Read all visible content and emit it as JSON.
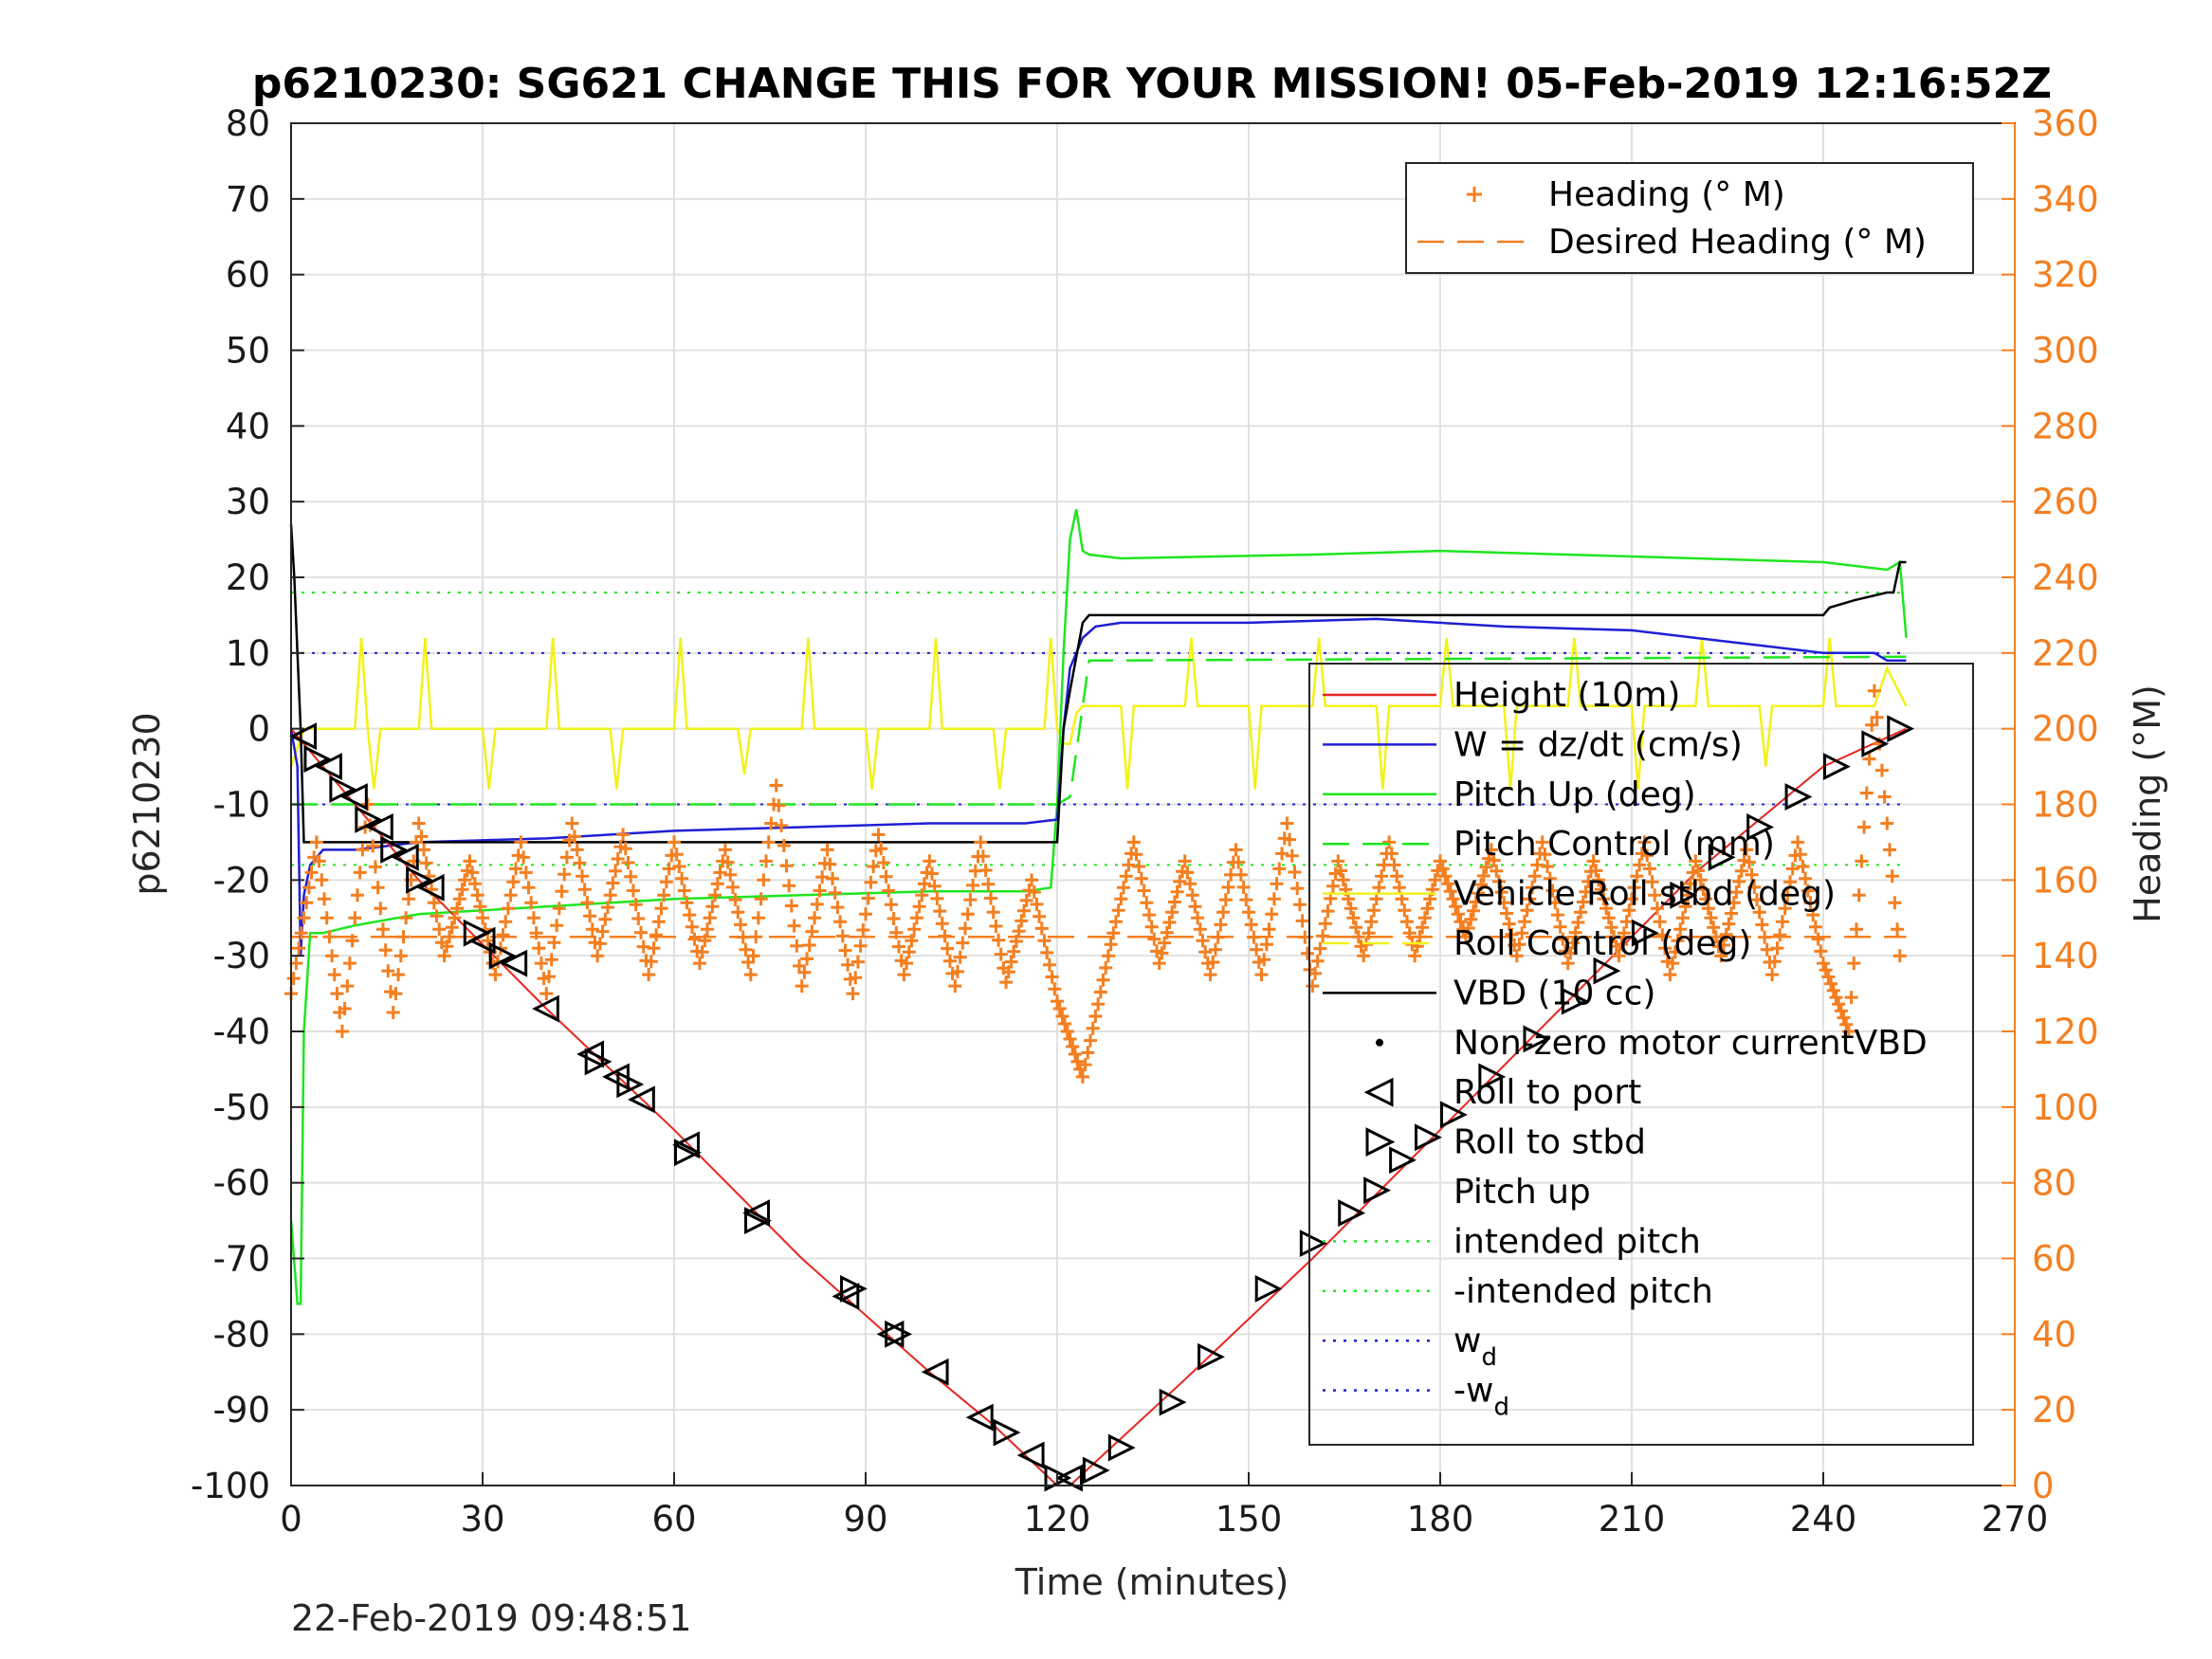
{
  "chart_data": {
    "type": "line",
    "title": "p6210230: SG621 CHANGE THIS FOR YOUR MISSION! 05-Feb-2019 12:16:52Z",
    "xlabel": "Time (minutes)",
    "ylabel": "p6210230",
    "y2label": "Heading (°M)",
    "footer": "22-Feb-2019 09:48:51",
    "xlim": [
      0,
      270
    ],
    "ylim": [
      -100,
      80
    ],
    "y2lim": [
      0,
      360
    ],
    "xticks": [
      "0",
      "30",
      "60",
      "90",
      "120",
      "150",
      "180",
      "210",
      "240",
      "270"
    ],
    "yticks": [
      "80",
      "70",
      "60",
      "50",
      "40",
      "30",
      "20",
      "10",
      "0",
      "-10",
      "-20",
      "-30",
      "-40",
      "-50",
      "-60",
      "-70",
      "-80",
      "-90",
      "-100"
    ],
    "y2ticks": [
      "360",
      "340",
      "320",
      "300",
      "280",
      "260",
      "240",
      "220",
      "200",
      "180",
      "160",
      "140",
      "120",
      "100",
      "80",
      "60",
      "40",
      "20",
      "0"
    ],
    "grid": true,
    "colors": {
      "height": "#e6261f",
      "w": "#1f1fd6",
      "pitch": "#1fe61f",
      "roll": "#f2f21a",
      "vbd": "#000000",
      "heading": "#f47f20"
    },
    "legend_top_right": [
      {
        "label": "Heading (° M)",
        "style": "plus",
        "color": "#f47f20"
      },
      {
        "label": "Desired Heading (° M)",
        "style": "dashed",
        "color": "#f47f20"
      }
    ],
    "legend_main": [
      {
        "label": "Height (10m)",
        "style": "solid",
        "color": "#e6261f"
      },
      {
        "label": "W = dz/dt (cm/s)",
        "style": "solid",
        "color": "#1f1fd6"
      },
      {
        "label": "Pitch Up (deg)",
        "style": "solid",
        "color": "#1fe61f"
      },
      {
        "label": "Pitch Control (mm)",
        "style": "dashed",
        "color": "#1fe61f"
      },
      {
        "label": "Vehicle Roll stbd (deg)",
        "style": "solid",
        "color": "#f2f21a"
      },
      {
        "label": "Roll Control (deg)",
        "style": "dashed",
        "color": "#f2f21a"
      },
      {
        "label": "VBD (10 cc)",
        "style": "solid",
        "color": "#000000"
      },
      {
        "label": "Non-zero motor currentVBD",
        "style": "dot",
        "color": "#000000"
      },
      {
        "label": "Roll to port",
        "style": "tri-left",
        "color": "#000000"
      },
      {
        "label": "Roll to stbd",
        "style": "tri-right",
        "color": "#000000"
      },
      {
        "label": "Pitch up",
        "style": "none",
        "color": "#000000"
      },
      {
        "label": "intended pitch",
        "style": "dotted",
        "color": "#1fe61f"
      },
      {
        "label": "-intended pitch",
        "style": "dotted",
        "color": "#1fe61f"
      },
      {
        "label": "w",
        "sub": "d",
        "style": "dotted",
        "color": "#1f1fd6"
      },
      {
        "label": "-w",
        "sub": "d",
        "style": "dotted",
        "color": "#1f1fd6"
      }
    ],
    "reference_lines": [
      {
        "name": "intended pitch",
        "y": 18,
        "color": "#1fe61f"
      },
      {
        "name": "-intended pitch",
        "y": -18,
        "color": "#1fe61f"
      },
      {
        "name": "w_d",
        "y": 10,
        "color": "#1f1fd6"
      },
      {
        "name": "-w_d",
        "y": -10,
        "color": "#1f1fd6"
      }
    ],
    "series": [
      {
        "key": "height",
        "x": [
          0,
          20,
          40,
          60,
          80,
          100,
          110,
          120,
          122,
          140,
          160,
          180,
          200,
          220,
          240,
          253
        ],
        "y": [
          0,
          -20,
          -37,
          -53,
          -70,
          -85,
          -92,
          -100,
          -100,
          -86,
          -70,
          -53,
          -36,
          -19,
          -5,
          0
        ]
      },
      {
        "key": "w",
        "x": [
          0,
          1,
          1.5,
          2,
          3,
          5,
          10,
          20,
          40,
          60,
          80,
          100,
          115,
          120,
          121,
          122,
          124,
          126,
          130,
          150,
          170,
          190,
          210,
          220,
          230,
          240,
          248,
          250,
          253
        ],
        "y": [
          0,
          -5,
          -30,
          -22,
          -18,
          -16,
          -16,
          -15,
          -14.5,
          -13.5,
          -13,
          -12.5,
          -12.5,
          -12,
          0,
          8,
          12,
          13.5,
          14,
          14,
          14.5,
          13.5,
          13,
          12,
          11,
          10,
          10,
          9,
          9
        ]
      },
      {
        "key": "pitch",
        "x": [
          0,
          1,
          1.5,
          2,
          3,
          5,
          10,
          20,
          40,
          60,
          80,
          100,
          115,
          119,
          120,
          121,
          122,
          123,
          124,
          125,
          130,
          160,
          180,
          200,
          220,
          240,
          250,
          252,
          253
        ],
        "y": [
          -65,
          -76,
          -76,
          -40,
          -27,
          -27,
          -26,
          -24.5,
          -23.5,
          -22.5,
          -22,
          -21.5,
          -21.5,
          -21,
          -10,
          10,
          25,
          29,
          23.5,
          23,
          22.5,
          23,
          23.5,
          23,
          22.5,
          22,
          21,
          22,
          12
        ]
      },
      {
        "key": "pitch_control",
        "x": [
          0,
          5,
          120,
          122,
          125,
          253
        ],
        "y": [
          -10,
          -10,
          -10,
          -9,
          9,
          9.5
        ],
        "style": "dashed"
      },
      {
        "key": "roll",
        "x": [
          0,
          2,
          3,
          10,
          11,
          12,
          13,
          14,
          20,
          21,
          22,
          30,
          31,
          32,
          40,
          41,
          42,
          50,
          51,
          52,
          60,
          61,
          62,
          70,
          71,
          72,
          80,
          81,
          82,
          90,
          91,
          92,
          100,
          101,
          102,
          110,
          111,
          112,
          118,
          119,
          120,
          121,
          122,
          123,
          124,
          130,
          131,
          132,
          140,
          141,
          142,
          150,
          151,
          152,
          160,
          161,
          162,
          170,
          171,
          172,
          180,
          181,
          182,
          190,
          191,
          192,
          200,
          201,
          202,
          210,
          211,
          212,
          220,
          221,
          222,
          230,
          231,
          232,
          240,
          241,
          242,
          248,
          250,
          253
        ],
        "y": [
          -5,
          0,
          0,
          0,
          12,
          0,
          -8,
          0,
          0,
          12,
          0,
          0,
          -8,
          0,
          0,
          12,
          0,
          0,
          -8,
          0,
          0,
          12,
          0,
          0,
          -6,
          0,
          0,
          12,
          0,
          0,
          -8,
          0,
          0,
          12,
          0,
          0,
          -8,
          0,
          0,
          12,
          0,
          -2,
          -2,
          2,
          3,
          3,
          -8,
          3,
          3,
          12,
          3,
          3,
          -8,
          3,
          3,
          12,
          3,
          3,
          -8,
          3,
          3,
          12,
          3,
          3,
          -8,
          3,
          3,
          12,
          3,
          3,
          -8,
          3,
          3,
          12,
          3,
          3,
          -5,
          3,
          3,
          12,
          3,
          3,
          8,
          3
        ]
      },
      {
        "key": "vbd",
        "x": [
          0,
          0.5,
          1,
          1.5,
          2,
          3,
          10,
          60,
          119,
          120,
          121,
          122,
          124,
          125,
          130,
          180,
          240,
          241,
          245,
          250,
          251,
          252,
          253
        ],
        "y": [
          27,
          20,
          10,
          0,
          -15,
          -15,
          -15,
          -15,
          -15,
          -15,
          0,
          5,
          14,
          15,
          15,
          15,
          15,
          16,
          17,
          18,
          18,
          22,
          22
        ]
      },
      {
        "key": "heading",
        "axis": "y2",
        "x": [
          0,
          4,
          8,
          12,
          16,
          20,
          24,
          28,
          32,
          36,
          40,
          44,
          48,
          52,
          56,
          60,
          64,
          68,
          72,
          76,
          80,
          84,
          88,
          92,
          96,
          100,
          104,
          108,
          112,
          116,
          120,
          124,
          128,
          132,
          136,
          140,
          144,
          148,
          152,
          156,
          160,
          164,
          168,
          172,
          176,
          180,
          184,
          188,
          192,
          196,
          200,
          204,
          208,
          212,
          216,
          220,
          224,
          228,
          232,
          236,
          240,
          244,
          248,
          252
        ],
        "y": [
          130,
          170,
          120,
          180,
          125,
          175,
          140,
          165,
          135,
          170,
          130,
          175,
          140,
          172,
          135,
          170,
          138,
          168,
          135,
          185,
          132,
          168,
          130,
          172,
          135,
          165,
          132,
          170,
          133,
          160,
          128,
          108,
          140,
          170,
          138,
          165,
          135,
          168,
          135,
          175,
          132,
          165,
          140,
          170,
          140,
          165,
          145,
          168,
          140,
          170,
          138,
          165,
          140,
          170,
          135,
          165,
          140,
          168,
          135,
          170,
          138,
          120,
          210,
          140
        ]
      },
      {
        "key": "desired_heading",
        "axis": "y2",
        "x": [
          0,
          253
        ],
        "y": [
          145,
          145
        ],
        "style": "dashed"
      }
    ],
    "markers_port": {
      "x": [
        2,
        6,
        10,
        14,
        18,
        22,
        30,
        35,
        40,
        47,
        51,
        55,
        62,
        73,
        87,
        94,
        101,
        108,
        116,
        122
      ],
      "y": [
        -1,
        -5,
        -9,
        -13,
        -17,
        -21,
        -28,
        -31,
        -37,
        -43,
        -46,
        -49,
        -55,
        -64,
        -75,
        -80,
        -85,
        -91,
        -96,
        -99
      ]
    },
    "markers_stbd": {
      "x": [
        4,
        8,
        12,
        16,
        20,
        29,
        33,
        48,
        53,
        62,
        73,
        88,
        95,
        112,
        120,
        126,
        130,
        138,
        144,
        153,
        160,
        166,
        170,
        174,
        178,
        182,
        188,
        195,
        201,
        206,
        212,
        218,
        224,
        230,
        236,
        242,
        248,
        252
      ],
      "y": [
        -4,
        -8,
        -12,
        -16,
        -20,
        -27,
        -30,
        -44,
        -47,
        -56,
        -65,
        -74,
        -80,
        -93,
        -99,
        -98,
        -95,
        -89,
        -83,
        -74,
        -68,
        -64,
        -61,
        -57,
        -54,
        -51,
        -46,
        -41,
        -36,
        -32,
        -27,
        -22,
        -17,
        -13,
        -9,
        -5,
        -2,
        0
      ]
    }
  }
}
